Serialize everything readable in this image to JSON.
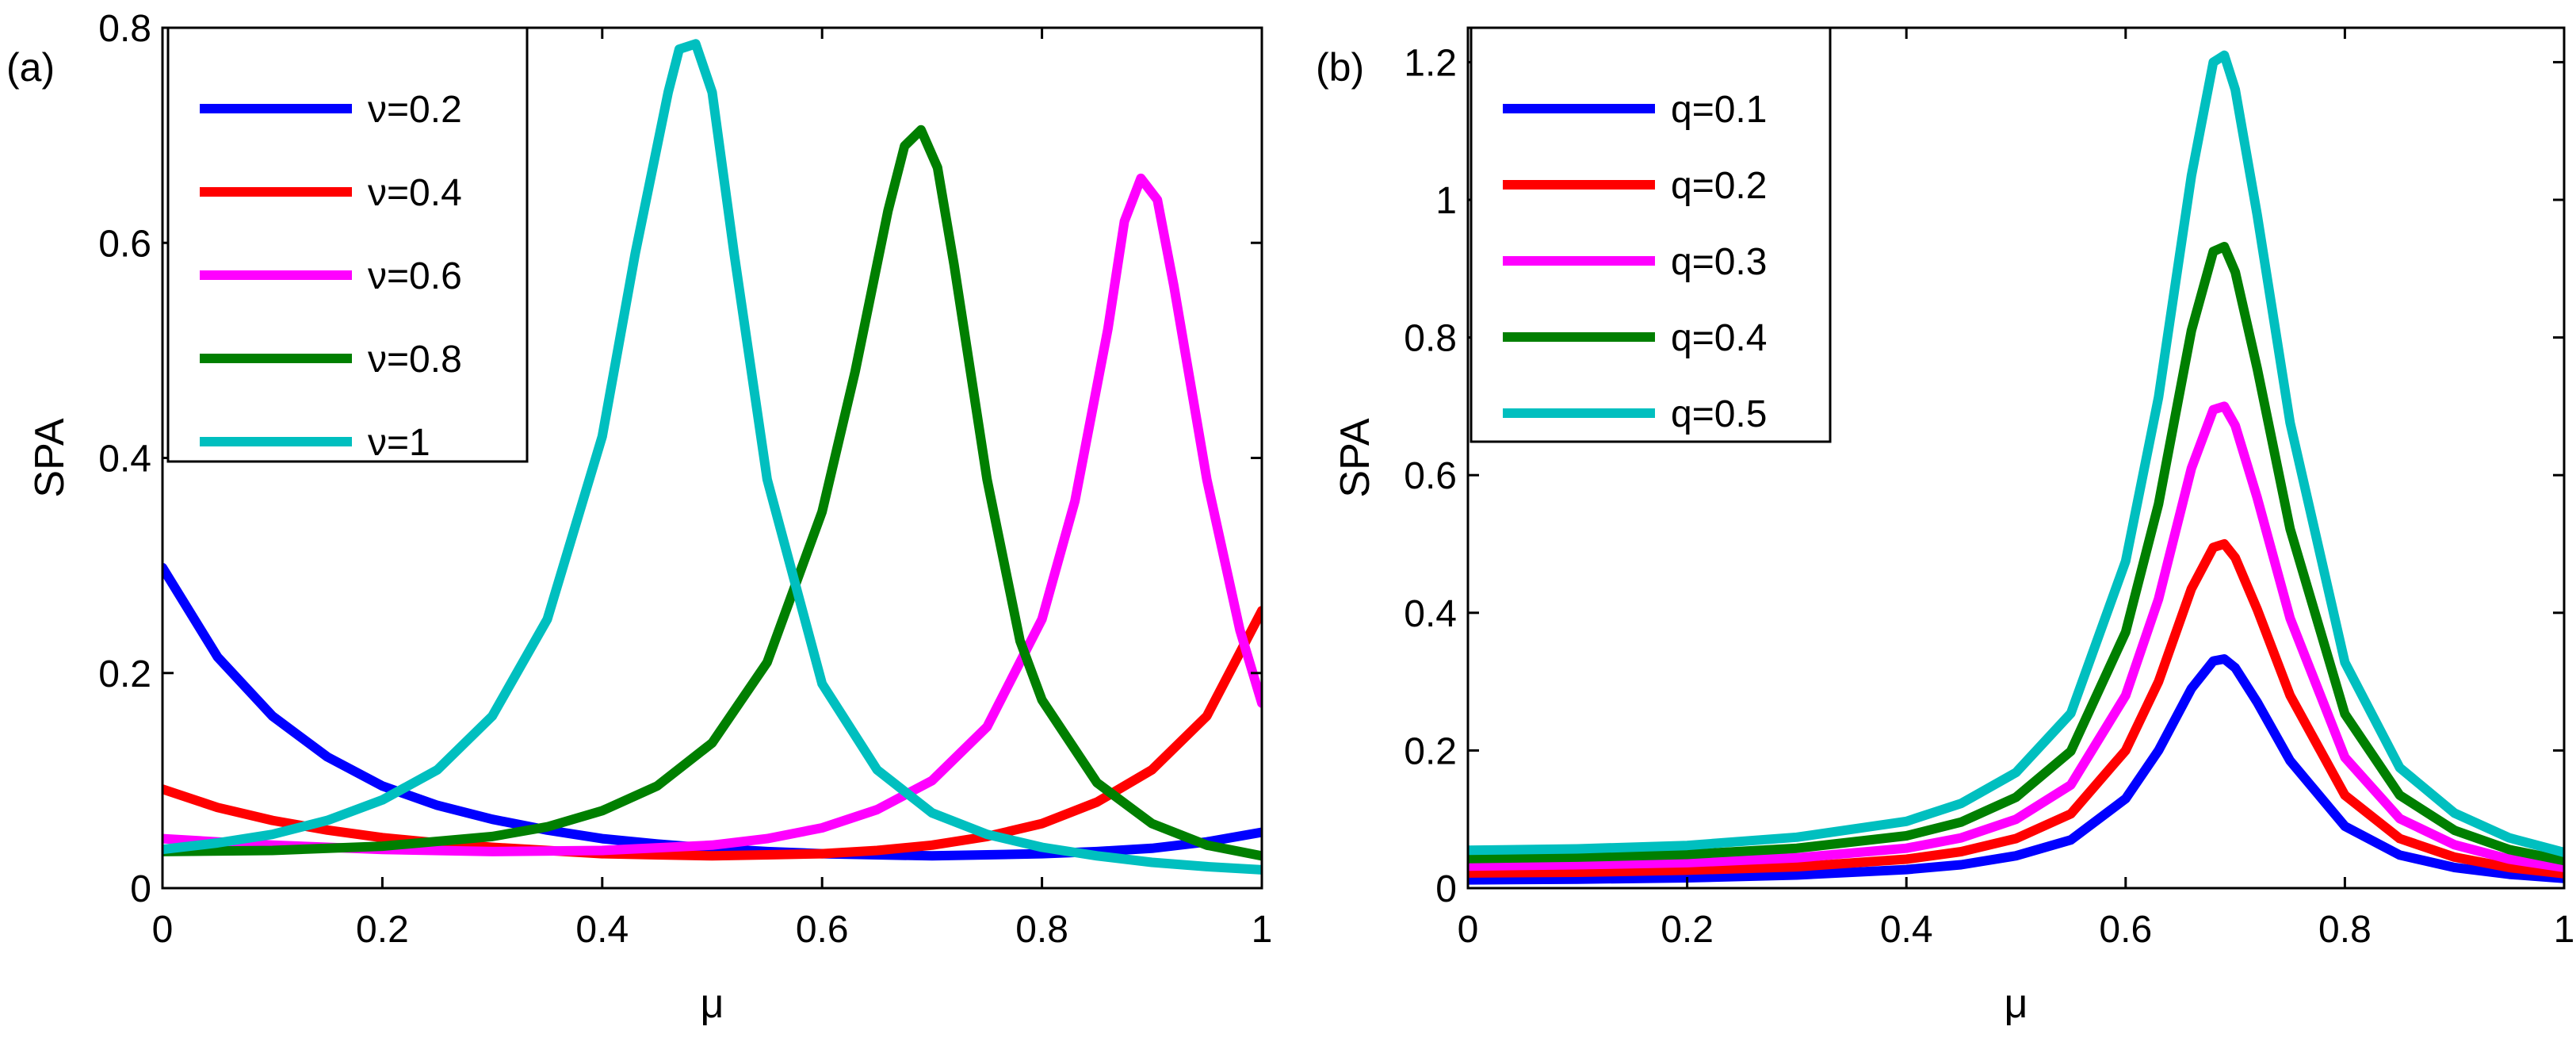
{
  "chart_data": [
    {
      "panel": "(a)",
      "type": "line",
      "xlabel": "μ",
      "ylabel": "SPA",
      "xlim": [
        0,
        1
      ],
      "ylim": [
        0,
        0.8
      ],
      "xticks": [
        0,
        0.2,
        0.4,
        0.6,
        0.8,
        1
      ],
      "xtick_labels": [
        "0",
        "0.2",
        "0.4",
        "0.6",
        "0.8",
        "1"
      ],
      "yticks": [
        0,
        0.2,
        0.4,
        0.6,
        0.8
      ],
      "ytick_labels": [
        "0",
        "0.2",
        "0.4",
        "0.6",
        "0.8"
      ],
      "legend_position": "top-left",
      "series": [
        {
          "name": "ν=0.2",
          "color": "#0000ff",
          "x": [
            0,
            0.05,
            0.1,
            0.15,
            0.2,
            0.25,
            0.3,
            0.35,
            0.4,
            0.45,
            0.5,
            0.55,
            0.6,
            0.65,
            0.7,
            0.75,
            0.8,
            0.85,
            0.9,
            0.95,
            1
          ],
          "y": [
            0.298,
            0.215,
            0.16,
            0.122,
            0.095,
            0.077,
            0.064,
            0.054,
            0.046,
            0.041,
            0.037,
            0.034,
            0.032,
            0.031,
            0.03,
            0.031,
            0.032,
            0.034,
            0.037,
            0.043,
            0.052
          ]
        },
        {
          "name": "ν=0.4",
          "color": "#ff0000",
          "x": [
            0,
            0.05,
            0.1,
            0.15,
            0.2,
            0.25,
            0.3,
            0.35,
            0.4,
            0.45,
            0.5,
            0.55,
            0.6,
            0.65,
            0.7,
            0.75,
            0.8,
            0.85,
            0.9,
            0.95,
            1
          ],
          "y": [
            0.092,
            0.075,
            0.063,
            0.054,
            0.047,
            0.042,
            0.038,
            0.035,
            0.032,
            0.031,
            0.03,
            0.031,
            0.032,
            0.035,
            0.04,
            0.048,
            0.06,
            0.08,
            0.11,
            0.16,
            0.258
          ]
        },
        {
          "name": "ν=0.6",
          "color": "#ff00ff",
          "x": [
            0,
            0.1,
            0.2,
            0.3,
            0.4,
            0.5,
            0.55,
            0.6,
            0.65,
            0.7,
            0.75,
            0.8,
            0.83,
            0.86,
            0.875,
            0.89,
            0.905,
            0.92,
            0.95,
            0.98,
            1
          ],
          "y": [
            0.046,
            0.04,
            0.036,
            0.034,
            0.035,
            0.04,
            0.046,
            0.056,
            0.073,
            0.1,
            0.15,
            0.25,
            0.36,
            0.52,
            0.62,
            0.66,
            0.64,
            0.56,
            0.38,
            0.24,
            0.172
          ]
        },
        {
          "name": "ν=0.8",
          "color": "#007f00",
          "x": [
            0,
            0.1,
            0.2,
            0.3,
            0.35,
            0.4,
            0.45,
            0.5,
            0.55,
            0.6,
            0.63,
            0.66,
            0.675,
            0.69,
            0.705,
            0.72,
            0.75,
            0.78,
            0.8,
            0.85,
            0.9,
            0.95,
            1
          ],
          "y": [
            0.034,
            0.035,
            0.039,
            0.048,
            0.057,
            0.072,
            0.095,
            0.135,
            0.21,
            0.35,
            0.48,
            0.63,
            0.69,
            0.705,
            0.67,
            0.58,
            0.38,
            0.23,
            0.175,
            0.098,
            0.06,
            0.04,
            0.03
          ]
        },
        {
          "name": "ν=1",
          "color": "#00bfbf",
          "x": [
            0,
            0.05,
            0.1,
            0.15,
            0.2,
            0.25,
            0.3,
            0.35,
            0.4,
            0.43,
            0.46,
            0.47,
            0.485,
            0.5,
            0.52,
            0.55,
            0.6,
            0.65,
            0.7,
            0.75,
            0.8,
            0.85,
            0.9,
            0.95,
            1
          ],
          "y": [
            0.036,
            0.042,
            0.05,
            0.063,
            0.082,
            0.11,
            0.16,
            0.25,
            0.42,
            0.59,
            0.74,
            0.78,
            0.785,
            0.74,
            0.59,
            0.38,
            0.19,
            0.11,
            0.07,
            0.05,
            0.038,
            0.03,
            0.024,
            0.02,
            0.017
          ]
        }
      ]
    },
    {
      "panel": "(b)",
      "type": "line",
      "xlabel": "μ",
      "ylabel": "SPA",
      "xlim": [
        0,
        1
      ],
      "ylim": [
        0,
        1.25
      ],
      "xticks": [
        0,
        0.2,
        0.4,
        0.6,
        0.8,
        1
      ],
      "xtick_labels": [
        "0",
        "0.2",
        "0.4",
        "0.6",
        "0.8",
        "1"
      ],
      "yticks": [
        0,
        0.2,
        0.4,
        0.6,
        0.8,
        1,
        1.2
      ],
      "ytick_labels": [
        "0",
        "0.2",
        "0.4",
        "0.6",
        "0.8",
        "1",
        "1.2"
      ],
      "legend_position": "top-left",
      "series": [
        {
          "name": "q=0.1",
          "color": "#0000ff",
          "x": [
            0,
            0.1,
            0.2,
            0.3,
            0.4,
            0.45,
            0.5,
            0.55,
            0.6,
            0.63,
            0.66,
            0.68,
            0.69,
            0.7,
            0.72,
            0.75,
            0.8,
            0.85,
            0.9,
            0.95,
            1
          ],
          "y": [
            0.012,
            0.013,
            0.015,
            0.019,
            0.027,
            0.034,
            0.047,
            0.07,
            0.13,
            0.2,
            0.29,
            0.33,
            0.333,
            0.32,
            0.27,
            0.185,
            0.09,
            0.048,
            0.03,
            0.02,
            0.014
          ]
        },
        {
          "name": "q=0.2",
          "color": "#ff0000",
          "x": [
            0,
            0.1,
            0.2,
            0.3,
            0.4,
            0.45,
            0.5,
            0.55,
            0.6,
            0.63,
            0.66,
            0.68,
            0.69,
            0.7,
            0.72,
            0.75,
            0.8,
            0.85,
            0.9,
            0.95,
            1
          ],
          "y": [
            0.022,
            0.023,
            0.026,
            0.031,
            0.042,
            0.053,
            0.072,
            0.108,
            0.2,
            0.3,
            0.435,
            0.495,
            0.5,
            0.48,
            0.405,
            0.28,
            0.135,
            0.072,
            0.045,
            0.03,
            0.021
          ]
        },
        {
          "name": "q=0.3",
          "color": "#ff00ff",
          "x": [
            0,
            0.1,
            0.2,
            0.3,
            0.4,
            0.45,
            0.5,
            0.55,
            0.6,
            0.63,
            0.66,
            0.68,
            0.69,
            0.7,
            0.72,
            0.75,
            0.8,
            0.85,
            0.9,
            0.95,
            1
          ],
          "y": [
            0.032,
            0.034,
            0.037,
            0.044,
            0.058,
            0.073,
            0.1,
            0.15,
            0.28,
            0.42,
            0.61,
            0.695,
            0.7,
            0.672,
            0.567,
            0.392,
            0.19,
            0.101,
            0.063,
            0.042,
            0.03
          ]
        },
        {
          "name": "q=0.4",
          "color": "#007f00",
          "x": [
            0,
            0.1,
            0.2,
            0.3,
            0.4,
            0.45,
            0.5,
            0.55,
            0.6,
            0.63,
            0.66,
            0.68,
            0.69,
            0.7,
            0.72,
            0.75,
            0.8,
            0.85,
            0.9,
            0.95,
            1
          ],
          "y": [
            0.043,
            0.045,
            0.049,
            0.058,
            0.076,
            0.096,
            0.132,
            0.199,
            0.372,
            0.558,
            0.81,
            0.925,
            0.932,
            0.895,
            0.755,
            0.522,
            0.253,
            0.135,
            0.084,
            0.056,
            0.04
          ]
        },
        {
          "name": "q=0.5",
          "color": "#00bfbf",
          "x": [
            0,
            0.1,
            0.2,
            0.3,
            0.4,
            0.45,
            0.5,
            0.55,
            0.6,
            0.63,
            0.66,
            0.68,
            0.69,
            0.7,
            0.72,
            0.75,
            0.8,
            0.85,
            0.9,
            0.95,
            1
          ],
          "y": [
            0.055,
            0.057,
            0.062,
            0.074,
            0.097,
            0.123,
            0.168,
            0.254,
            0.475,
            0.713,
            1.035,
            1.2,
            1.21,
            1.16,
            0.978,
            0.676,
            0.328,
            0.175,
            0.109,
            0.073,
            0.052
          ]
        }
      ]
    }
  ]
}
